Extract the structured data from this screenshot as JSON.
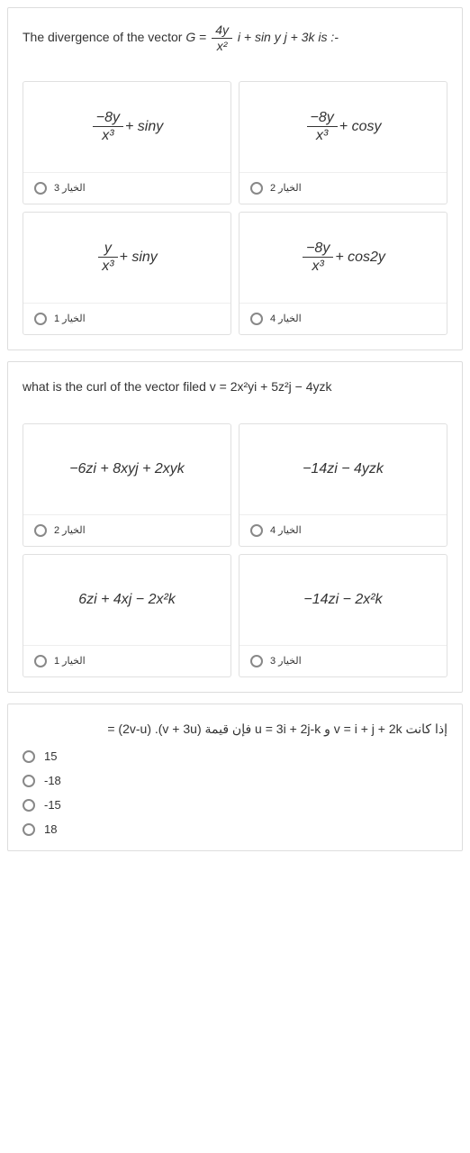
{
  "q1": {
    "prompt_pre": "The divergence of the vector ",
    "prompt_mid": " = ",
    "frac_num": "4y",
    "frac_den": "x²",
    "prompt_post": " i + sin y j + 3k is :-",
    "options": [
      {
        "num": "−8y",
        "den": "x³",
        "rest": " + siny",
        "label": "الخيار 3"
      },
      {
        "num": "−8y",
        "den": "x³",
        "rest": " + cosy",
        "label": "الخيار 2"
      },
      {
        "num": "y",
        "den": "x³",
        "rest": " + siny",
        "label": "الخيار 1"
      },
      {
        "num": "−8y",
        "den": "x³",
        "rest": " + cos2y",
        "label": "الخيار 4"
      }
    ]
  },
  "q2": {
    "prompt": "what is the curl of the vector filed v = 2x²yi + 5z²j − 4yzk",
    "options": [
      {
        "text": "−6zi + 8xyj + 2xyk",
        "label": "الخيار 2"
      },
      {
        "text": "−14zi − 4yzk",
        "label": "الخيار 4"
      },
      {
        "text": "6zi + 4xj − 2x²k",
        "label": "الخيار 1"
      },
      {
        "text": "−14zi − 2x²k",
        "label": "الخيار 3"
      }
    ]
  },
  "q3": {
    "prompt": "إذا كانت v = i + j + 2k و u = 3i + 2j-k فإن قيمة (v + 3u). (2v-u) =",
    "options": [
      {
        "text": "15"
      },
      {
        "text": "-18"
      },
      {
        "text": "-15"
      },
      {
        "text": "18"
      }
    ]
  }
}
